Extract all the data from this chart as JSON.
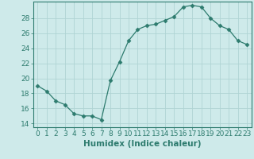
{
  "x": [
    0,
    1,
    2,
    3,
    4,
    5,
    6,
    7,
    8,
    9,
    10,
    11,
    12,
    13,
    14,
    15,
    16,
    17,
    18,
    19,
    20,
    21,
    22,
    23
  ],
  "y": [
    19.0,
    18.3,
    17.0,
    16.5,
    15.3,
    15.0,
    15.0,
    14.5,
    19.7,
    22.2,
    25.0,
    26.5,
    27.0,
    27.2,
    27.7,
    28.2,
    29.5,
    29.7,
    29.5,
    28.0,
    27.0,
    26.5,
    25.0,
    24.5
  ],
  "xlabel": "Humidex (Indice chaleur)",
  "xlim": [
    -0.5,
    23.5
  ],
  "ylim": [
    13.5,
    30.2
  ],
  "yticks": [
    14,
    16,
    18,
    20,
    22,
    24,
    26,
    28
  ],
  "xticks": [
    0,
    1,
    2,
    3,
    4,
    5,
    6,
    7,
    8,
    9,
    10,
    11,
    12,
    13,
    14,
    15,
    16,
    17,
    18,
    19,
    20,
    21,
    22,
    23
  ],
  "line_color": "#2d7b6e",
  "marker": "D",
  "marker_size": 2.5,
  "bg_color": "#ceeaea",
  "grid_color": "#b0d4d4",
  "tick_label_fontsize": 6.5,
  "xlabel_fontsize": 7.5
}
